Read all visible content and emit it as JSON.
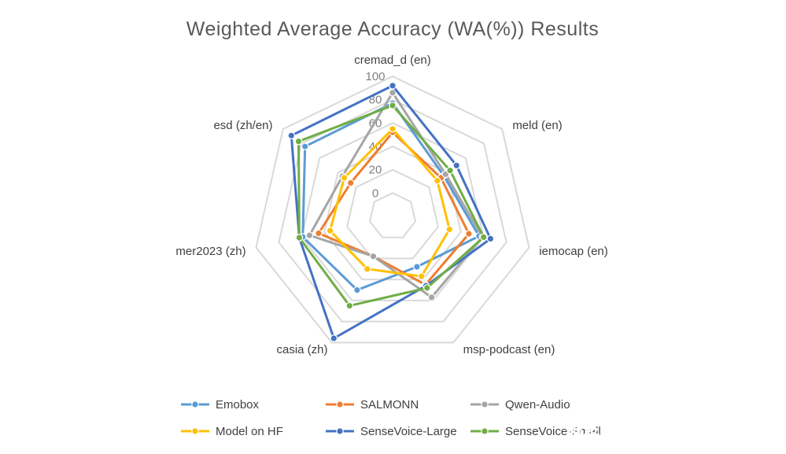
{
  "chart_data": {
    "type": "radar",
    "title": "Weighted Average Accuracy (WA(%)) Results",
    "categories": [
      "cremad_d (en)",
      "meld (en)",
      "iemocap (en)",
      "msp-podcast (en)",
      "casia (zh)",
      "mer2023 (zh)",
      "esd  (zh/en)"
    ],
    "tick_labels": [
      "0",
      "20",
      "40",
      "60",
      "80",
      "100"
    ],
    "rmin": -20,
    "rmax": 100,
    "tick_step": 20,
    "grid": true,
    "legend_position": "bottom",
    "series": [
      {
        "name": "Emobox",
        "color": "#5b9bd5",
        "values": [
          77,
          36,
          56,
          28,
          50,
          59,
          76
        ]
      },
      {
        "name": "SALMONN",
        "color": "#ed7d31",
        "values": [
          52,
          33,
          47,
          45,
          18,
          45,
          26
        ]
      },
      {
        "name": "Qwen-Audio",
        "color": "#a5a5a5",
        "values": [
          86,
          38,
          59,
          57,
          18,
          53,
          35
        ]
      },
      {
        "name": "Model on HF",
        "color": "#ffc000",
        "values": [
          55,
          29,
          30,
          37,
          30,
          35,
          33
        ]
      },
      {
        "name": "SenseVoice-Large",
        "color": "#4472c4",
        "values": [
          92,
          50,
          66,
          46,
          96,
          62,
          91
        ]
      },
      {
        "name": "SenseVoice-Small",
        "color": "#70ad47",
        "values": [
          75,
          43,
          60,
          48,
          65,
          62,
          83
        ]
      }
    ]
  },
  "watermark": {
    "text": "掘金技术社区 @ ModStart"
  }
}
